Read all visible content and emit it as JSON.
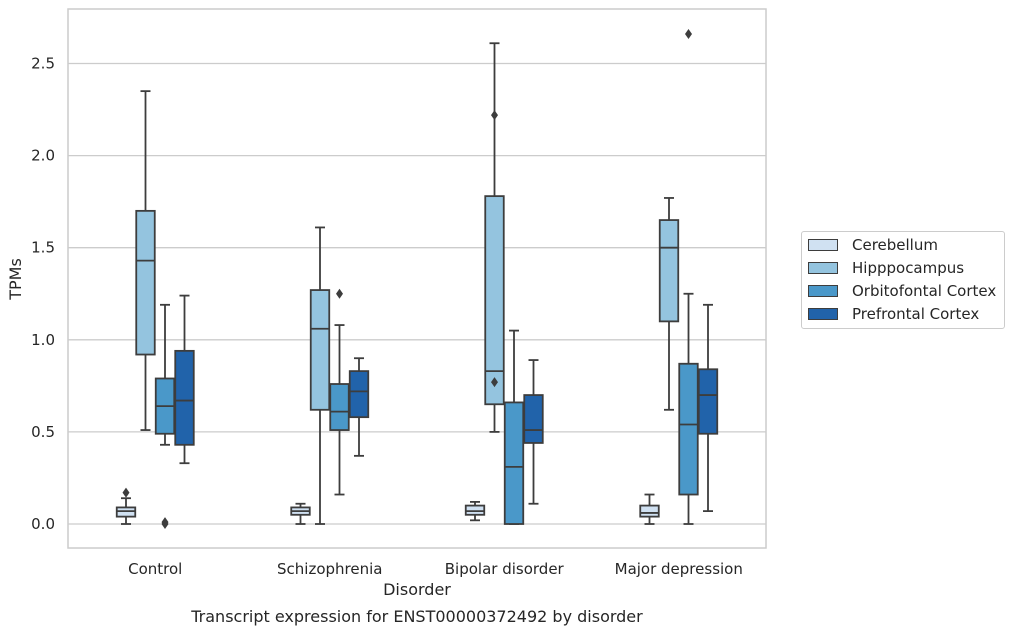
{
  "chart_data": {
    "type": "box",
    "title": "Transcript expression for ENST00000372492 by disorder",
    "xlabel": "Disorder",
    "ylabel": "TPMs",
    "ylim": [
      -0.13,
      2.8
    ],
    "yticks": [
      "0.0",
      "0.5",
      "1.0",
      "1.5",
      "2.0",
      "2.5"
    ],
    "grid": "horizontal",
    "legend_position": "right",
    "categories": [
      "Control",
      "Schizophrenia",
      "Bipolar disorder",
      "Major depression"
    ],
    "series": [
      {
        "name": "Cerebellum",
        "color": "#d0e1f2",
        "boxes": [
          {
            "whisker_low": 0.0,
            "q1": 0.04,
            "median": 0.07,
            "q3": 0.09,
            "whisker_high": 0.14,
            "outliers": [
              0.17
            ]
          },
          {
            "whisker_low": 0.0,
            "q1": 0.05,
            "median": 0.07,
            "q3": 0.09,
            "whisker_high": 0.11,
            "outliers": []
          },
          {
            "whisker_low": 0.02,
            "q1": 0.05,
            "median": 0.07,
            "q3": 0.1,
            "whisker_high": 0.12,
            "outliers": []
          },
          {
            "whisker_low": 0.0,
            "q1": 0.04,
            "median": 0.06,
            "q3": 0.1,
            "whisker_high": 0.16,
            "outliers": []
          }
        ]
      },
      {
        "name": "Hipppocampus",
        "color": "#94c4df",
        "boxes": [
          {
            "whisker_low": 0.51,
            "q1": 0.92,
            "median": 1.43,
            "q3": 1.7,
            "whisker_high": 2.35,
            "outliers": []
          },
          {
            "whisker_low": 0.0,
            "q1": 0.62,
            "median": 1.06,
            "q3": 1.27,
            "whisker_high": 1.61,
            "outliers": []
          },
          {
            "whisker_low": 0.5,
            "q1": 0.65,
            "median": 0.83,
            "q3": 1.78,
            "whisker_high": 2.61,
            "outliers": [
              0.77,
              2.22
            ]
          },
          {
            "whisker_low": 0.62,
            "q1": 1.1,
            "median": 1.5,
            "q3": 1.65,
            "whisker_high": 1.77,
            "outliers": []
          }
        ]
      },
      {
        "name": "Orbitofontal Cortex",
        "color": "#4a98c9",
        "boxes": [
          {
            "whisker_low": 0.43,
            "q1": 0.49,
            "median": 0.64,
            "q3": 0.79,
            "whisker_high": 1.19,
            "outliers": [
              0.0,
              0.01
            ]
          },
          {
            "whisker_low": 0.16,
            "q1": 0.51,
            "median": 0.61,
            "q3": 0.76,
            "whisker_high": 1.08,
            "outliers": [
              1.25
            ]
          },
          {
            "whisker_low": 0.0,
            "q1": 0.0,
            "median": 0.31,
            "q3": 0.66,
            "whisker_high": 1.05,
            "outliers": []
          },
          {
            "whisker_low": 0.0,
            "q1": 0.16,
            "median": 0.54,
            "q3": 0.87,
            "whisker_high": 1.25,
            "outliers": [
              2.66
            ]
          }
        ]
      },
      {
        "name": "Prefrontal Cortex",
        "color": "#2163aa",
        "boxes": [
          {
            "whisker_low": 0.33,
            "q1": 0.43,
            "median": 0.67,
            "q3": 0.94,
            "whisker_high": 1.24,
            "outliers": []
          },
          {
            "whisker_low": 0.37,
            "q1": 0.58,
            "median": 0.72,
            "q3": 0.83,
            "whisker_high": 0.9,
            "outliers": []
          },
          {
            "whisker_low": 0.11,
            "q1": 0.44,
            "median": 0.51,
            "q3": 0.7,
            "whisker_high": 0.89,
            "outliers": []
          },
          {
            "whisker_low": 0.07,
            "q1": 0.49,
            "median": 0.7,
            "q3": 0.84,
            "whisker_high": 1.19,
            "outliers": []
          }
        ]
      }
    ]
  }
}
